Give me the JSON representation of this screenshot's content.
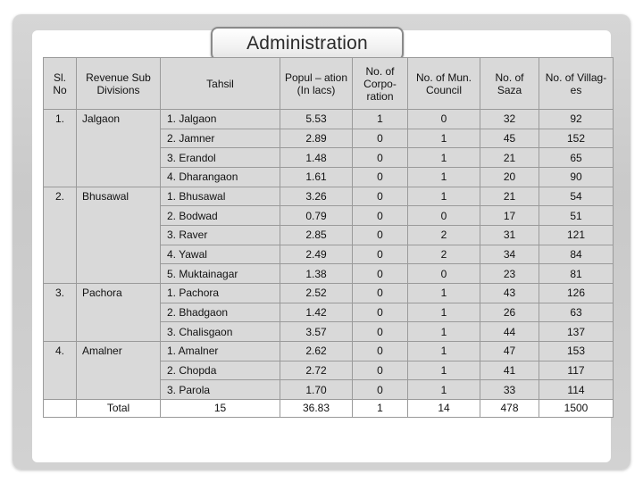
{
  "title": "Administration",
  "table": {
    "headers": {
      "sl_no": "Sl. No",
      "revenue": "Revenue Sub Divisions",
      "tahsil": "Tahsil",
      "population": "Popul – ation (In lacs)",
      "corporation": "No. of Corpo- ration",
      "mun_council": "No. of Mun. Council",
      "saza": "No. of Saza",
      "villages": "No. of Villag-es"
    },
    "groups": [
      {
        "sl": "1.",
        "division": "Jalgaon",
        "rows": [
          {
            "tahsil": "1. Jalgaon",
            "population": "5.53",
            "corporation": "1",
            "council": "0",
            "saza": "32",
            "villages": "92"
          },
          {
            "tahsil": "2. Jamner",
            "population": "2.89",
            "corporation": "0",
            "council": "1",
            "saza": "45",
            "villages": "152"
          },
          {
            "tahsil": "3. Erandol",
            "population": "1.48",
            "corporation": "0",
            "council": "1",
            "saza": "21",
            "villages": "65"
          },
          {
            "tahsil": "4. Dharangaon",
            "population": "1.61",
            "corporation": "0",
            "council": "1",
            "saza": "20",
            "villages": "90"
          }
        ]
      },
      {
        "sl": "2.",
        "division": "Bhusawal",
        "rows": [
          {
            "tahsil": "1. Bhusawal",
            "population": "3.26",
            "corporation": "0",
            "council": "1",
            "saza": "21",
            "villages": "54"
          },
          {
            "tahsil": "2. Bodwad",
            "population": "0.79",
            "corporation": "0",
            "council": "0",
            "saza": "17",
            "villages": "51"
          },
          {
            "tahsil": "3. Raver",
            "population": "2.85",
            "corporation": "0",
            "council": "2",
            "saza": "31",
            "villages": "121"
          },
          {
            "tahsil": "4. Yawal",
            "population": "2.49",
            "corporation": "0",
            "council": "2",
            "saza": "34",
            "villages": "84"
          },
          {
            "tahsil": "5. Muktainagar",
            "population": "1.38",
            "corporation": "0",
            "council": "0",
            "saza": "23",
            "villages": "81"
          }
        ]
      },
      {
        "sl": "3.",
        "division": "Pachora",
        "rows": [
          {
            "tahsil": "1. Pachora",
            "population": "2.52",
            "corporation": "0",
            "council": "1",
            "saza": "43",
            "villages": "126"
          },
          {
            "tahsil": "2. Bhadgaon",
            "population": "1.42",
            "corporation": "0",
            "council": "1",
            "saza": "26",
            "villages": "63"
          },
          {
            "tahsil": "3. Chalisgaon",
            "population": "3.57",
            "corporation": "0",
            "council": "1",
            "saza": "44",
            "villages": "137"
          }
        ]
      },
      {
        "sl": "4.",
        "division": "Amalner",
        "rows": [
          {
            "tahsil": "1. Amalner",
            "population": "2.62",
            "corporation": "0",
            "council": "1",
            "saza": "47",
            "villages": "153"
          },
          {
            "tahsil": "2. Chopda",
            "population": "2.72",
            "corporation": "0",
            "council": "1",
            "saza": "41",
            "villages": "117"
          },
          {
            "tahsil": "3. Parola",
            "population": "1.70",
            "corporation": "0",
            "council": "1",
            "saza": "33",
            "villages": "114"
          }
        ]
      }
    ],
    "total": {
      "label": "Total",
      "tahsil": "15",
      "population": "36.83",
      "corporation": "1",
      "council": "14",
      "saza": "478",
      "villages": "1500"
    }
  }
}
